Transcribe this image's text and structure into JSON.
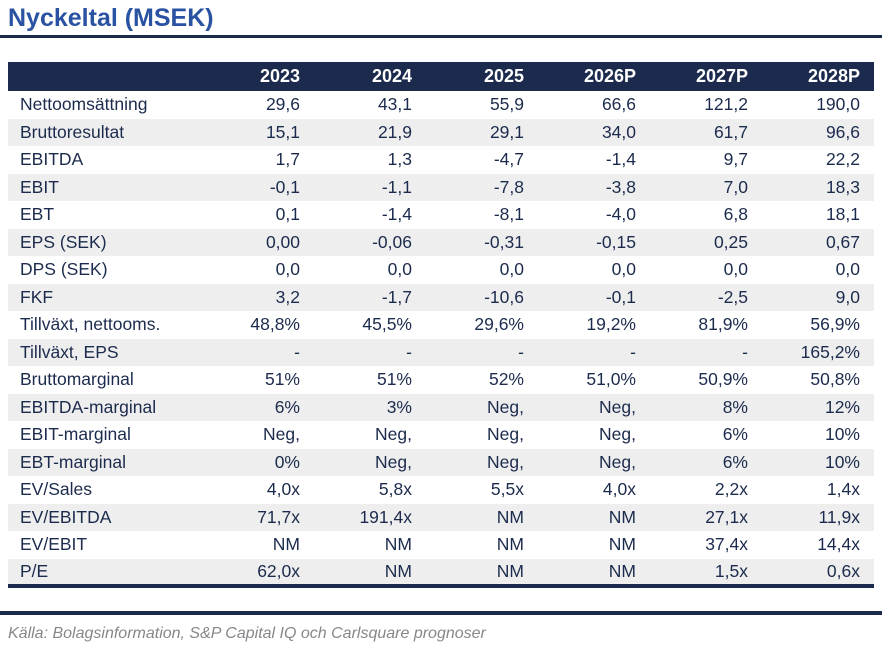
{
  "page": {
    "title": "Nyckeltal (MSEK)",
    "source_note": "Källa: Bolagsinformation, S&P Capital IQ och Carlsquare prognoser"
  },
  "colors": {
    "navy": "#1c2b4d",
    "title_blue": "#2a52a2",
    "stripe": "#eeeeee",
    "source_gray": "#85878a"
  },
  "table": {
    "columns": [
      "2023",
      "2024",
      "2025",
      "2026P",
      "2027P",
      "2028P"
    ],
    "rows": [
      {
        "label": "Nettoomsättning",
        "values": [
          "29,6",
          "43,1",
          "55,9",
          "66,6",
          "121,2",
          "190,0"
        ]
      },
      {
        "label": "Bruttoresultat",
        "values": [
          "15,1",
          "21,9",
          "29,1",
          "34,0",
          "61,7",
          "96,6"
        ]
      },
      {
        "label": "EBITDA",
        "values": [
          "1,7",
          "1,3",
          "-4,7",
          "-1,4",
          "9,7",
          "22,2"
        ]
      },
      {
        "label": "EBIT",
        "values": [
          "-0,1",
          "-1,1",
          "-7,8",
          "-3,8",
          "7,0",
          "18,3"
        ]
      },
      {
        "label": "EBT",
        "values": [
          "0,1",
          "-1,4",
          "-8,1",
          "-4,0",
          "6,8",
          "18,1"
        ]
      },
      {
        "label": "EPS (SEK)",
        "values": [
          "0,00",
          "-0,06",
          "-0,31",
          "-0,15",
          "0,25",
          "0,67"
        ]
      },
      {
        "label": "DPS (SEK)",
        "values": [
          "0,0",
          "0,0",
          "0,0",
          "0,0",
          "0,0",
          "0,0"
        ]
      },
      {
        "label": "FKF",
        "values": [
          "3,2",
          "-1,7",
          "-10,6",
          "-0,1",
          "-2,5",
          "9,0"
        ]
      },
      {
        "label": "Tillväxt, nettooms.",
        "values": [
          "48,8%",
          "45,5%",
          "29,6%",
          "19,2%",
          "81,9%",
          "56,9%"
        ]
      },
      {
        "label": "Tillväxt, EPS",
        "values": [
          "-",
          "-",
          "-",
          "-",
          "-",
          "165,2%"
        ]
      },
      {
        "label": "Bruttomarginal",
        "values": [
          "51%",
          "51%",
          "52%",
          "51,0%",
          "50,9%",
          "50,8%"
        ]
      },
      {
        "label": "EBITDA-marginal",
        "values": [
          "6%",
          "3%",
          "Neg,",
          "Neg,",
          "8%",
          "12%"
        ]
      },
      {
        "label": "EBIT-marginal",
        "values": [
          "Neg,",
          "Neg,",
          "Neg,",
          "Neg,",
          "6%",
          "10%"
        ]
      },
      {
        "label": "EBT-marginal",
        "values": [
          "0%",
          "Neg,",
          "Neg,",
          "Neg,",
          "6%",
          "10%"
        ]
      },
      {
        "label": "EV/Sales",
        "values": [
          "4,0x",
          "5,8x",
          "5,5x",
          "4,0x",
          "2,2x",
          "1,4x"
        ]
      },
      {
        "label": "EV/EBITDA",
        "values": [
          "71,7x",
          "191,4x",
          "NM",
          "NM",
          "27,1x",
          "11,9x"
        ]
      },
      {
        "label": "EV/EBIT",
        "values": [
          "NM",
          "NM",
          "NM",
          "NM",
          "37,4x",
          "14,4x"
        ]
      },
      {
        "label": "P/E",
        "values": [
          "62,0x",
          "NM",
          "NM",
          "NM",
          "1,5x",
          "0,6x"
        ]
      }
    ]
  }
}
